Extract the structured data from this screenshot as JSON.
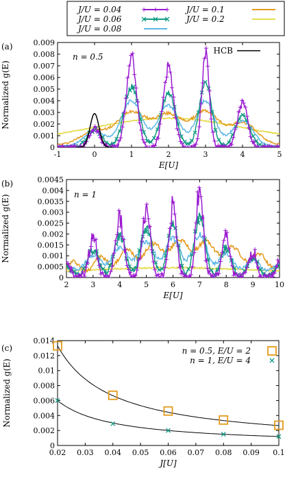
{
  "legend": {
    "entries": [
      {
        "label": "J/U = 0.04",
        "color": "#9a1ad0",
        "marker": "plus"
      },
      {
        "label": "J/U = 0.1",
        "color": "#e39a1c",
        "marker": "none"
      },
      {
        "label": "J/U = 0.06",
        "color": "#0f9a82",
        "marker": "cross"
      },
      {
        "label": "J/U = 0.2",
        "color": "#e5dc50",
        "marker": "none"
      },
      {
        "label": "J/U = 0.08",
        "color": "#5bb6e6",
        "marker": "none"
      }
    ]
  },
  "chart_data": [
    {
      "panel": "(a)",
      "type": "line",
      "annotation": "n = 0.5",
      "inner_legend": "HCB",
      "xlabel": "E[U]",
      "ylabel": "Normalized g(E)",
      "xlim": [
        -1,
        5
      ],
      "ylim": [
        0,
        0.009
      ],
      "xticks": [
        "-1",
        "0",
        "1",
        "2",
        "3",
        "4",
        "5"
      ],
      "yticks": [
        "0",
        "0.001",
        "0.002",
        "0.003",
        "0.004",
        "0.005",
        "0.006",
        "0.007",
        "0.008",
        "0.009"
      ],
      "series": [
        {
          "name": "J/U = 0.04",
          "peaks": [
            {
              "x": 0,
              "h": 0.0017,
              "w": 0.14
            },
            {
              "x": 1,
              "h": 0.0077,
              "w": 0.14
            },
            {
              "x": 2,
              "h": 0.0069,
              "w": 0.14
            },
            {
              "x": 3,
              "h": 0.0081,
              "w": 0.1
            },
            {
              "x": 4,
              "h": 0.0037,
              "w": 0.14
            }
          ],
          "base": 0.0,
          "noise": 0.0003
        },
        {
          "name": "J/U = 0.06",
          "peaks": [
            {
              "x": 0,
              "h": 0.0015,
              "w": 0.2
            },
            {
              "x": 1,
              "h": 0.0052,
              "w": 0.2
            },
            {
              "x": 2,
              "h": 0.0047,
              "w": 0.2
            },
            {
              "x": 3,
              "h": 0.0055,
              "w": 0.17
            },
            {
              "x": 4,
              "h": 0.0027,
              "w": 0.2
            }
          ],
          "base": 0.0,
          "noise": 0.00015
        },
        {
          "name": "J/U = 0.08",
          "peaks": [
            {
              "x": 0,
              "h": 0.0013,
              "w": 0.28
            },
            {
              "x": 1,
              "h": 0.0039,
              "w": 0.28
            },
            {
              "x": 2,
              "h": 0.0035,
              "w": 0.28
            },
            {
              "x": 3,
              "h": 0.0039,
              "w": 0.25
            },
            {
              "x": 4,
              "h": 0.0022,
              "w": 0.28
            }
          ],
          "base": 0.0001,
          "noise": 0.0001
        },
        {
          "name": "J/U = 0.1",
          "peaks": [
            {
              "x": 0,
              "h": 0.0012,
              "w": 0.38
            },
            {
              "x": 1,
              "h": 0.0028,
              "w": 0.38
            },
            {
              "x": 2,
              "h": 0.0026,
              "w": 0.38
            },
            {
              "x": 3,
              "h": 0.0028,
              "w": 0.35
            },
            {
              "x": 4,
              "h": 0.0019,
              "w": 0.38
            }
          ],
          "base": 0.0002,
          "noise": 0.0001
        },
        {
          "name": "J/U = 0.2",
          "broad": {
            "center": 2,
            "height": 0.002,
            "width": 2.0
          },
          "base": 0.0005,
          "noise": 4e-05
        },
        {
          "name": "HCB",
          "single": {
            "x": 0,
            "h": 0.0029,
            "w": 0.12
          },
          "support": [
            -0.5,
            0.5
          ]
        }
      ]
    },
    {
      "panel": "(b)",
      "type": "line",
      "annotation": "n = 1",
      "xlabel": "E[U]",
      "ylabel": "Normalized g(E)",
      "xlim": [
        2,
        10
      ],
      "ylim": [
        0,
        0.0045
      ],
      "xticks": [
        "2",
        "3",
        "4",
        "5",
        "6",
        "7",
        "8",
        "9",
        "10"
      ],
      "yticks": [
        "0",
        "0.0005",
        "0.001",
        "0.0015",
        "0.002",
        "0.0025",
        "0.003",
        "0.0035",
        "0.004",
        "0.0045"
      ],
      "series": [
        {
          "name": "J/U = 0.04",
          "peaks": [
            {
              "x": 2,
              "h": 0.0006,
              "w": 0.16
            },
            {
              "x": 3,
              "h": 0.0018,
              "w": 0.16
            },
            {
              "x": 4,
              "h": 0.0027,
              "w": 0.16
            },
            {
              "x": 5,
              "h": 0.0031,
              "w": 0.16
            },
            {
              "x": 6,
              "h": 0.0033,
              "w": 0.14
            },
            {
              "x": 7,
              "h": 0.0041,
              "w": 0.14
            },
            {
              "x": 8,
              "h": 0.0019,
              "w": 0.14
            },
            {
              "x": 9,
              "h": 0.0012,
              "w": 0.14
            },
            {
              "x": 10,
              "h": 0.0007,
              "w": 0.14
            }
          ],
          "base": 0.0,
          "noise": 0.00025
        },
        {
          "name": "J/U = 0.06",
          "peaks": [
            {
              "x": 2,
              "h": 0.0005,
              "w": 0.22
            },
            {
              "x": 3,
              "h": 0.0013,
              "w": 0.22
            },
            {
              "x": 4,
              "h": 0.0019,
              "w": 0.22
            },
            {
              "x": 5,
              "h": 0.0023,
              "w": 0.22
            },
            {
              "x": 6,
              "h": 0.0025,
              "w": 0.2
            },
            {
              "x": 7,
              "h": 0.0028,
              "w": 0.2
            },
            {
              "x": 8,
              "h": 0.0014,
              "w": 0.2
            },
            {
              "x": 9,
              "h": 0.0009,
              "w": 0.2
            },
            {
              "x": 10,
              "h": 0.0006,
              "w": 0.2
            }
          ],
          "base": 0.0,
          "noise": 0.00012
        },
        {
          "name": "J/U = 0.08",
          "peaks": [
            {
              "x": 2,
              "h": 0.0004,
              "w": 0.3
            },
            {
              "x": 3,
              "h": 0.0009,
              "w": 0.3
            },
            {
              "x": 4,
              "h": 0.0013,
              "w": 0.3
            },
            {
              "x": 5,
              "h": 0.0016,
              "w": 0.3
            },
            {
              "x": 6,
              "h": 0.0017,
              "w": 0.28
            },
            {
              "x": 7,
              "h": 0.0019,
              "w": 0.28
            },
            {
              "x": 8,
              "h": 0.001,
              "w": 0.28
            },
            {
              "x": 9,
              "h": 0.0007,
              "w": 0.28
            },
            {
              "x": 10,
              "h": 0.0005,
              "w": 0.28
            }
          ],
          "base": 0.0001,
          "noise": 8e-05
        },
        {
          "name": "J/U = 0.1",
          "broad": {
            "center": 6.5,
            "height": 0.0012,
            "width": 2.2
          },
          "ripple": 0.00025,
          "base": 0.0003,
          "noise": 0.0001
        },
        {
          "name": "J/U = 0.2",
          "broad": {
            "center": 6,
            "height": 0.00025,
            "width": 3.0
          },
          "base": 0.0002,
          "noise": 3e-05
        }
      ]
    },
    {
      "panel": "(c)",
      "type": "scatter",
      "xlabel": "J[U]",
      "ylabel": "Normalized g(E)",
      "xlim": [
        0.02,
        0.1
      ],
      "ylim": [
        0,
        0.014
      ],
      "xticks": [
        "0.02",
        "0.03",
        "0.04",
        "0.05",
        "0.06",
        "0.07",
        "0.08",
        "0.09",
        "0.1"
      ],
      "yticks": [
        "0",
        "0.002",
        "0.004",
        "0.006",
        "0.008",
        "0.01",
        "0.012",
        "0.014"
      ],
      "series": [
        {
          "name": "n = 0.5, E/U = 2",
          "marker": "square",
          "color": "#e39a1c",
          "x": [
            0.02,
            0.04,
            0.06,
            0.08,
            0.1
          ],
          "y": [
            0.0133,
            0.0067,
            0.0046,
            0.0034,
            0.0027
          ],
          "fit": {
            "a": 0.000266,
            "p": 1.0
          }
        },
        {
          "name": "n = 1, E/U = 4",
          "marker": "cross",
          "color": "#0f9a82",
          "x": [
            0.02,
            0.04,
            0.06,
            0.08,
            0.1
          ],
          "y": [
            0.006,
            0.0029,
            0.002,
            0.0015,
            0.0012
          ],
          "fit": {
            "a": 0.00012,
            "p": 1.0
          }
        }
      ]
    }
  ]
}
